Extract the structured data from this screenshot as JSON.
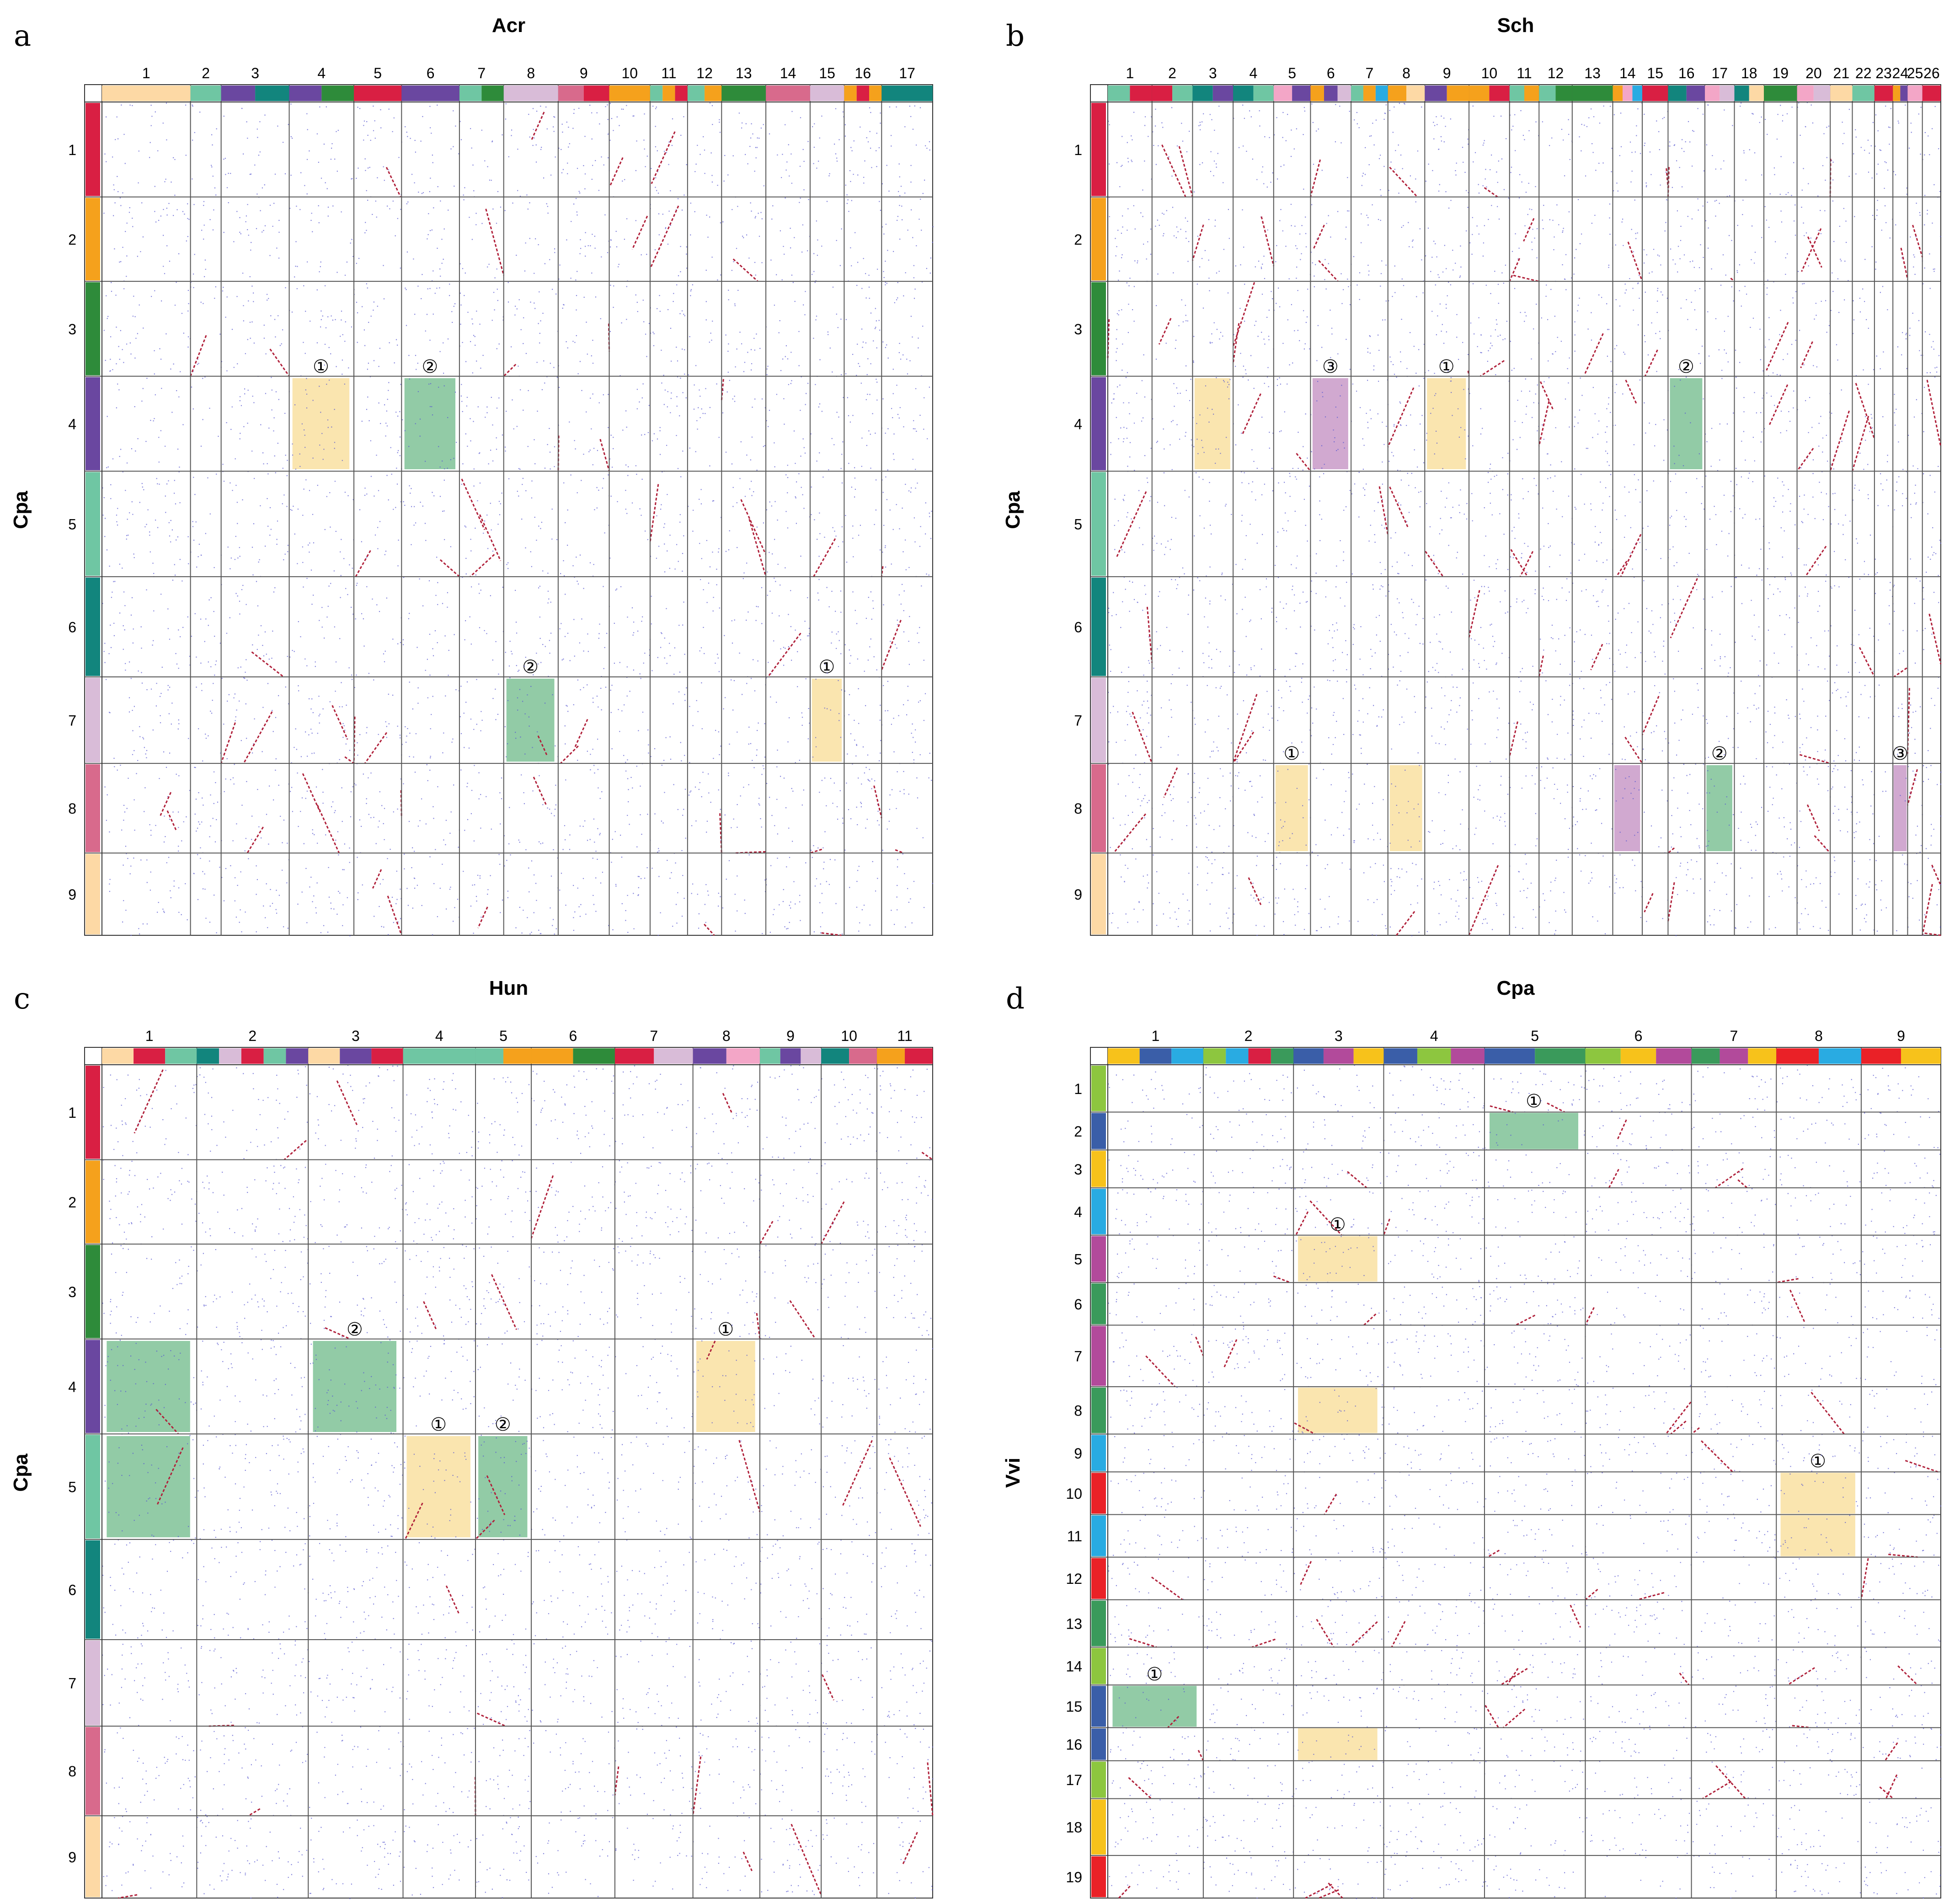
{
  "colors": {
    "red": "#d91f43",
    "orange": "#f5a11c",
    "darkgreen": "#2e8b3a",
    "purple": "#6a47a0",
    "mint": "#6fc6a3",
    "teal": "#12857d",
    "lilac": "#d9bcd8",
    "rose": "#d86a8c",
    "peach": "#fdd9a5",
    "pink": "#f3a6c7",
    "lime": "#8dc63f",
    "blue": "#3a5ea8",
    "yellow": "#f7c21b",
    "sky": "#29abe2",
    "magenta": "#b24a9b",
    "green2": "#3a9a5b",
    "bright_red": "#ea2127",
    "hl_yellow": "#f7d37a",
    "hl_green": "#4aa86a",
    "hl_purple": "#b36fb0",
    "dot_blue": "#5a5ad0",
    "dot_red": "#b0203a",
    "grid": "#555555"
  },
  "panels": [
    {
      "letter": "a",
      "x_title": "Acr",
      "y_title": "Cpa",
      "x_labels": [
        "1",
        "2",
        "3",
        "4",
        "5",
        "6",
        "7",
        "8",
        "9",
        "10",
        "11",
        "12",
        "13",
        "14",
        "15",
        "16",
        "17"
      ],
      "x_widths": [
        1.3,
        0.45,
        1.0,
        0.95,
        0.7,
        0.85,
        0.65,
        0.8,
        0.75,
        0.6,
        0.55,
        0.5,
        0.65,
        0.65,
        0.5,
        0.55,
        0.75
      ],
      "x_strip": [
        [
          "peach"
        ],
        [
          "mint"
        ],
        [
          "purple",
          "teal"
        ],
        [
          "purple",
          "darkgreen"
        ],
        [
          "red"
        ],
        [
          "purple"
        ],
        [
          "mint",
          "darkgreen"
        ],
        [
          "lilac"
        ],
        [
          "rose",
          "red"
        ],
        [
          "orange"
        ],
        [
          "mint",
          "orange",
          "red"
        ],
        [
          "mint",
          "orange"
        ],
        [
          "darkgreen"
        ],
        [
          "rose"
        ],
        [
          "lilac"
        ],
        [
          "orange",
          "red",
          "orange"
        ],
        [
          "teal"
        ]
      ],
      "y_labels": [
        "1",
        "2",
        "3",
        "4",
        "5",
        "6",
        "7",
        "8",
        "9"
      ],
      "y_heights": [
        0.9,
        0.8,
        0.9,
        0.9,
        1.0,
        0.95,
        0.82,
        0.85,
        0.78
      ],
      "y_colors": [
        "red",
        "orange",
        "darkgreen",
        "purple",
        "mint",
        "teal",
        "lilac",
        "rose",
        "peach"
      ],
      "highlights": [
        {
          "col": 3,
          "row": 3,
          "span_c": 1,
          "span_r": 1,
          "color": "hl_yellow",
          "mark": "①"
        },
        {
          "col": 5,
          "row": 3,
          "span_c": 1,
          "span_r": 1,
          "color": "hl_green",
          "mark": "②"
        },
        {
          "col": 7,
          "row": 6,
          "span_c": 1,
          "span_r": 1,
          "color": "hl_green",
          "mark": "②"
        },
        {
          "col": 14,
          "row": 6,
          "span_c": 1,
          "span_r": 1,
          "color": "hl_yellow",
          "mark": "①"
        }
      ]
    },
    {
      "letter": "b",
      "x_title": "Sch",
      "y_title": "Cpa",
      "x_labels": [
        "1",
        "2",
        "3",
        "4",
        "5",
        "6",
        "7",
        "8",
        "9",
        "10",
        "11",
        "12",
        "13",
        "14",
        "15",
        "16",
        "17",
        "18",
        "19",
        "20",
        "21",
        "22",
        "23",
        "24",
        "25",
        "26"
      ],
      "x_widths": [
        0.6,
        0.55,
        0.55,
        0.55,
        0.5,
        0.55,
        0.5,
        0.5,
        0.6,
        0.55,
        0.4,
        0.45,
        0.55,
        0.4,
        0.35,
        0.5,
        0.4,
        0.4,
        0.45,
        0.45,
        0.3,
        0.3,
        0.25,
        0.2,
        0.2,
        0.25
      ],
      "x_strip": [
        [
          "mint",
          "red"
        ],
        [
          "red",
          "mint"
        ],
        [
          "teal",
          "purple"
        ],
        [
          "teal",
          "mint"
        ],
        [
          "pink",
          "purple"
        ],
        [
          "orange",
          "purple",
          "lilac"
        ],
        [
          "mint",
          "orange",
          "sky"
        ],
        [
          "orange",
          "peach"
        ],
        [
          "purple",
          "orange"
        ],
        [
          "orange",
          "red"
        ],
        [
          "mint",
          "orange"
        ],
        [
          "mint",
          "darkgreen"
        ],
        [
          "darkgreen"
        ],
        [
          "orange",
          "pink",
          "sky"
        ],
        [
          "red"
        ],
        [
          "teal",
          "purple"
        ],
        [
          "pink",
          "lilac"
        ],
        [
          "teal",
          "peach"
        ],
        [
          "darkgreen"
        ],
        [
          "pink",
          "lilac"
        ],
        [
          "peach"
        ],
        [
          "mint"
        ],
        [
          "red"
        ],
        [
          "orange",
          "purple"
        ],
        [
          "pink"
        ],
        [
          "red"
        ]
      ],
      "y_labels": [
        "1",
        "2",
        "3",
        "4",
        "5",
        "6",
        "7",
        "8",
        "9"
      ],
      "y_heights": [
        0.9,
        0.8,
        0.9,
        0.9,
        1.0,
        0.95,
        0.82,
        0.85,
        0.78
      ],
      "y_colors": [
        "red",
        "orange",
        "darkgreen",
        "purple",
        "mint",
        "teal",
        "lilac",
        "rose",
        "peach"
      ],
      "highlights": [
        {
          "col": 8,
          "row": 3,
          "span_c": 1,
          "span_r": 1,
          "color": "hl_yellow",
          "mark": "①"
        },
        {
          "col": 5,
          "row": 3,
          "span_c": 1,
          "span_r": 1,
          "color": "hl_purple",
          "mark": "③"
        },
        {
          "col": 15,
          "row": 3,
          "span_c": 1,
          "span_r": 1,
          "color": "hl_green",
          "mark": "②"
        },
        {
          "col": 2,
          "row": 3,
          "span_c": 1,
          "span_r": 1,
          "color": "hl_yellow",
          "mark": ""
        },
        {
          "col": 4,
          "row": 7,
          "span_c": 1,
          "span_r": 1,
          "color": "hl_yellow",
          "mark": "①"
        },
        {
          "col": 16,
          "row": 7,
          "span_c": 1,
          "span_r": 1,
          "color": "hl_green",
          "mark": "②"
        },
        {
          "col": 23,
          "row": 7,
          "span_c": 1,
          "span_r": 1,
          "color": "hl_purple",
          "mark": "③"
        },
        {
          "col": 7,
          "row": 7,
          "span_c": 1,
          "span_r": 1,
          "color": "hl_yellow",
          "mark": ""
        },
        {
          "col": 13,
          "row": 7,
          "span_c": 1,
          "span_r": 1,
          "color": "hl_purple",
          "mark": ""
        }
      ]
    },
    {
      "letter": "c",
      "x_title": "Hun",
      "y_title": "Cpa",
      "x_labels": [
        "1",
        "2",
        "3",
        "4",
        "5",
        "6",
        "7",
        "8",
        "9",
        "10",
        "11"
      ],
      "x_widths": [
        0.85,
        1.0,
        0.85,
        0.65,
        0.5,
        0.75,
        0.7,
        0.6,
        0.55,
        0.5,
        0.5
      ],
      "x_strip": [
        [
          "peach",
          "red",
          "mint"
        ],
        [
          "teal",
          "lilac",
          "red",
          "mint",
          "purple"
        ],
        [
          "peach",
          "purple",
          "red"
        ],
        [
          "mint"
        ],
        [
          "mint",
          "orange"
        ],
        [
          "orange",
          "darkgreen"
        ],
        [
          "red",
          "lilac"
        ],
        [
          "purple",
          "pink"
        ],
        [
          "mint",
          "purple",
          "lilac"
        ],
        [
          "teal",
          "rose"
        ],
        [
          "orange",
          "red"
        ]
      ],
      "y_labels": [
        "1",
        "2",
        "3",
        "4",
        "5",
        "6",
        "7",
        "8",
        "9"
      ],
      "y_heights": [
        0.9,
        0.8,
        0.9,
        0.9,
        1.0,
        0.95,
        0.82,
        0.85,
        0.78
      ],
      "y_colors": [
        "red",
        "orange",
        "darkgreen",
        "purple",
        "mint",
        "teal",
        "lilac",
        "rose",
        "peach"
      ],
      "highlights": [
        {
          "col": 7,
          "row": 3,
          "span_c": 1,
          "span_r": 1,
          "color": "hl_yellow",
          "mark": "①"
        },
        {
          "col": 2,
          "row": 3,
          "span_c": 1,
          "span_r": 1,
          "color": "hl_green",
          "mark": "②"
        },
        {
          "col": 0,
          "row": 3,
          "span_c": 1,
          "span_r": 1,
          "color": "hl_green",
          "mark": ""
        },
        {
          "col": 3,
          "row": 4,
          "span_c": 1,
          "span_r": 1,
          "color": "hl_yellow",
          "mark": "①"
        },
        {
          "col": 4,
          "row": 4,
          "span_c": 1,
          "span_r": 1,
          "color": "hl_green",
          "mark": "②"
        },
        {
          "col": 0,
          "row": 4,
          "span_c": 1,
          "span_r": 1,
          "color": "hl_green",
          "mark": ""
        }
      ]
    },
    {
      "letter": "d",
      "x_title": "Cpa",
      "y_title": "Vvi",
      "x_labels": [
        "1",
        "2",
        "3",
        "4",
        "5",
        "6",
        "7",
        "8",
        "9"
      ],
      "x_widths": [
        0.9,
        0.85,
        0.85,
        0.95,
        0.95,
        1.0,
        0.8,
        0.8,
        0.75
      ],
      "x_strip": [
        [
          "yellow",
          "blue",
          "sky"
        ],
        [
          "lime",
          "sky",
          "red",
          "green2"
        ],
        [
          "blue",
          "magenta",
          "yellow"
        ],
        [
          "blue",
          "lime",
          "magenta"
        ],
        [
          "blue",
          "green2"
        ],
        [
          "lime",
          "yellow",
          "magenta"
        ],
        [
          "green2",
          "magenta",
          "yellow"
        ],
        [
          "bright_red",
          "sky"
        ],
        [
          "bright_red",
          "yellow"
        ]
      ],
      "y_labels": [
        "1",
        "2",
        "3",
        "4",
        "5",
        "6",
        "7",
        "8",
        "9",
        "10",
        "11",
        "12",
        "13",
        "14",
        "15",
        "16",
        "17",
        "18",
        "19"
      ],
      "y_heights": [
        0.5,
        0.4,
        0.4,
        0.5,
        0.5,
        0.45,
        0.65,
        0.5,
        0.4,
        0.45,
        0.45,
        0.45,
        0.5,
        0.4,
        0.45,
        0.35,
        0.4,
        0.6,
        0.45
      ],
      "y_colors": [
        "lime",
        "blue",
        "yellow",
        "sky",
        "magenta",
        "green2",
        "magenta",
        "green2",
        "sky",
        "bright_red",
        "sky",
        "bright_red",
        "green2",
        "lime",
        "blue",
        "blue",
        "lime",
        "yellow",
        "bright_red"
      ],
      "highlights": [
        {
          "col": 4,
          "row": 1,
          "span_c": 1,
          "span_r": 1,
          "color": "hl_green",
          "mark": "①"
        },
        {
          "col": 2,
          "row": 4,
          "span_c": 1,
          "span_r": 1,
          "color": "hl_yellow",
          "mark": "①"
        },
        {
          "col": 2,
          "row": 7,
          "span_c": 1,
          "span_r": 1,
          "color": "hl_yellow",
          "mark": ""
        },
        {
          "col": 7,
          "row": 9,
          "span_c": 1,
          "span_r": 1,
          "color": "hl_yellow",
          "mark": "①"
        },
        {
          "col": 7,
          "row": 10,
          "span_c": 1,
          "span_r": 1,
          "color": "hl_yellow",
          "mark": ""
        },
        {
          "col": 0,
          "row": 14,
          "span_c": 1,
          "span_r": 1,
          "color": "hl_green",
          "mark": "①"
        },
        {
          "col": 2,
          "row": 15,
          "span_c": 1,
          "span_r": 1,
          "color": "hl_yellow",
          "mark": ""
        }
      ]
    }
  ]
}
